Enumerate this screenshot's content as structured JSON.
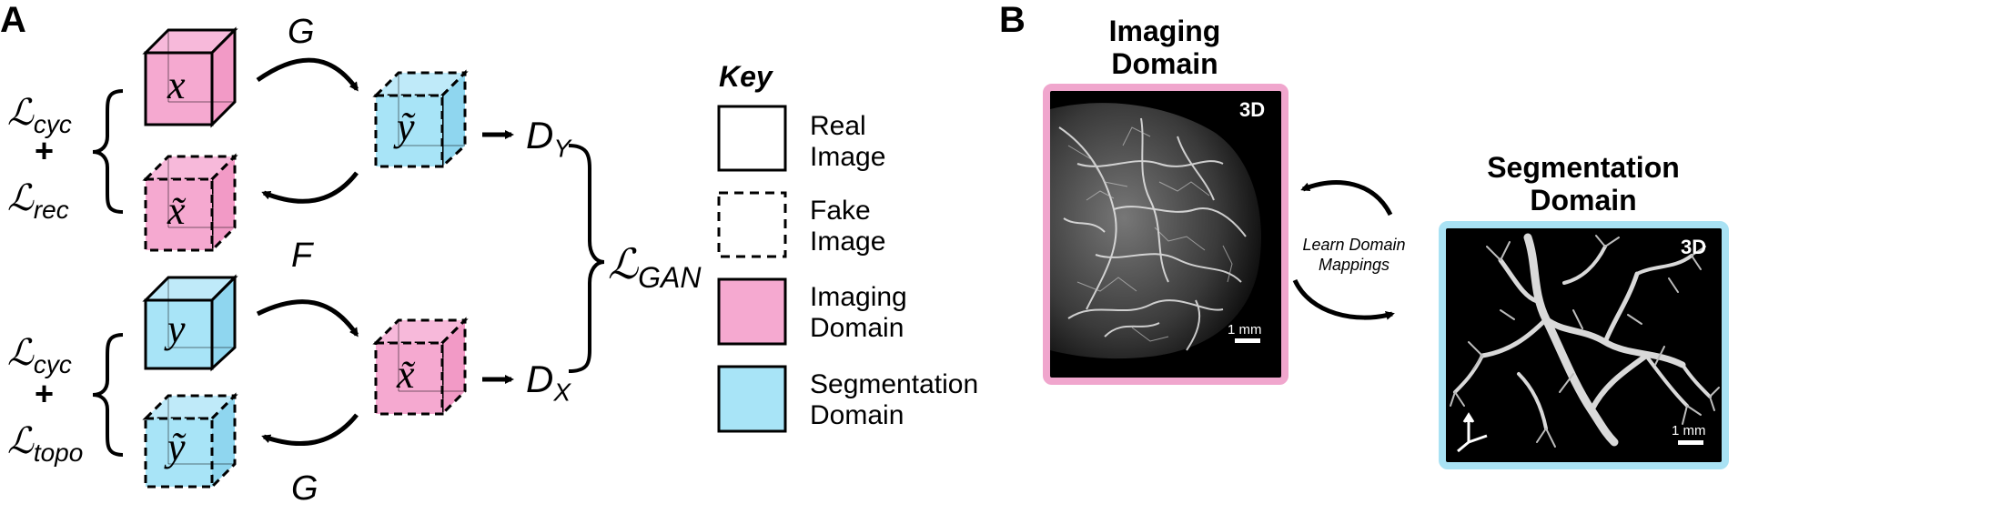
{
  "panel_a": {
    "label": "A",
    "top_arrow_label": "G",
    "middle_arrow_label": "F",
    "bottom_arrow_label": "G",
    "cube_x": "x",
    "cube_y_tilde_top": "ỹ",
    "cube_x_tilde_top": "x̃",
    "cube_y": "y",
    "cube_x_tilde_bottom": "x̃",
    "cube_y_tilde_bottom": "ỹ",
    "disc_y": {
      "main": "D",
      "sub": "Y"
    },
    "disc_x": {
      "main": "D",
      "sub": "X"
    },
    "loss_top_1": {
      "main": "ℒ",
      "sub": "cyc"
    },
    "loss_plus_top": "+",
    "loss_top_2": {
      "main": "ℒ",
      "sub": "rec"
    },
    "loss_bottom_1": {
      "main": "ℒ",
      "sub": "cyc"
    },
    "loss_plus_bottom": "+",
    "loss_bottom_2": {
      "main": "ℒ",
      "sub": "topo"
    },
    "loss_gan": {
      "main": "ℒ",
      "sub": "GAN"
    }
  },
  "key": {
    "title": "Key",
    "items": [
      {
        "label_1": "Real",
        "label_2": "Image",
        "style": "solid",
        "fill": "#ffffff"
      },
      {
        "label_1": "Fake",
        "label_2": "Image",
        "style": "dashed",
        "fill": "#ffffff"
      },
      {
        "label_1": "Imaging",
        "label_2": "Domain",
        "style": "solid",
        "fill": "#f5a9d0"
      },
      {
        "label_1": "Segmentation",
        "label_2": "Domain",
        "style": "solid",
        "fill": "#a8e4f7"
      }
    ]
  },
  "panel_b": {
    "label": "B",
    "imaging_title_1": "Imaging",
    "imaging_title_2": "Domain",
    "imaging_badge": "3D",
    "imaging_scale": "1 mm",
    "mapping_label_1": "Learn Domain",
    "mapping_label_2": "Mappings",
    "segmentation_title_1": "Segmentation",
    "segmentation_title_2": "Domain",
    "segmentation_badge": "3D",
    "segmentation_scale": "1 mm"
  },
  "colors": {
    "imaging": "#f5a9d0",
    "segmentation": "#a8e4f7",
    "imaging_border": "#f0a6cd",
    "segmentation_border": "#a9e2f4"
  }
}
